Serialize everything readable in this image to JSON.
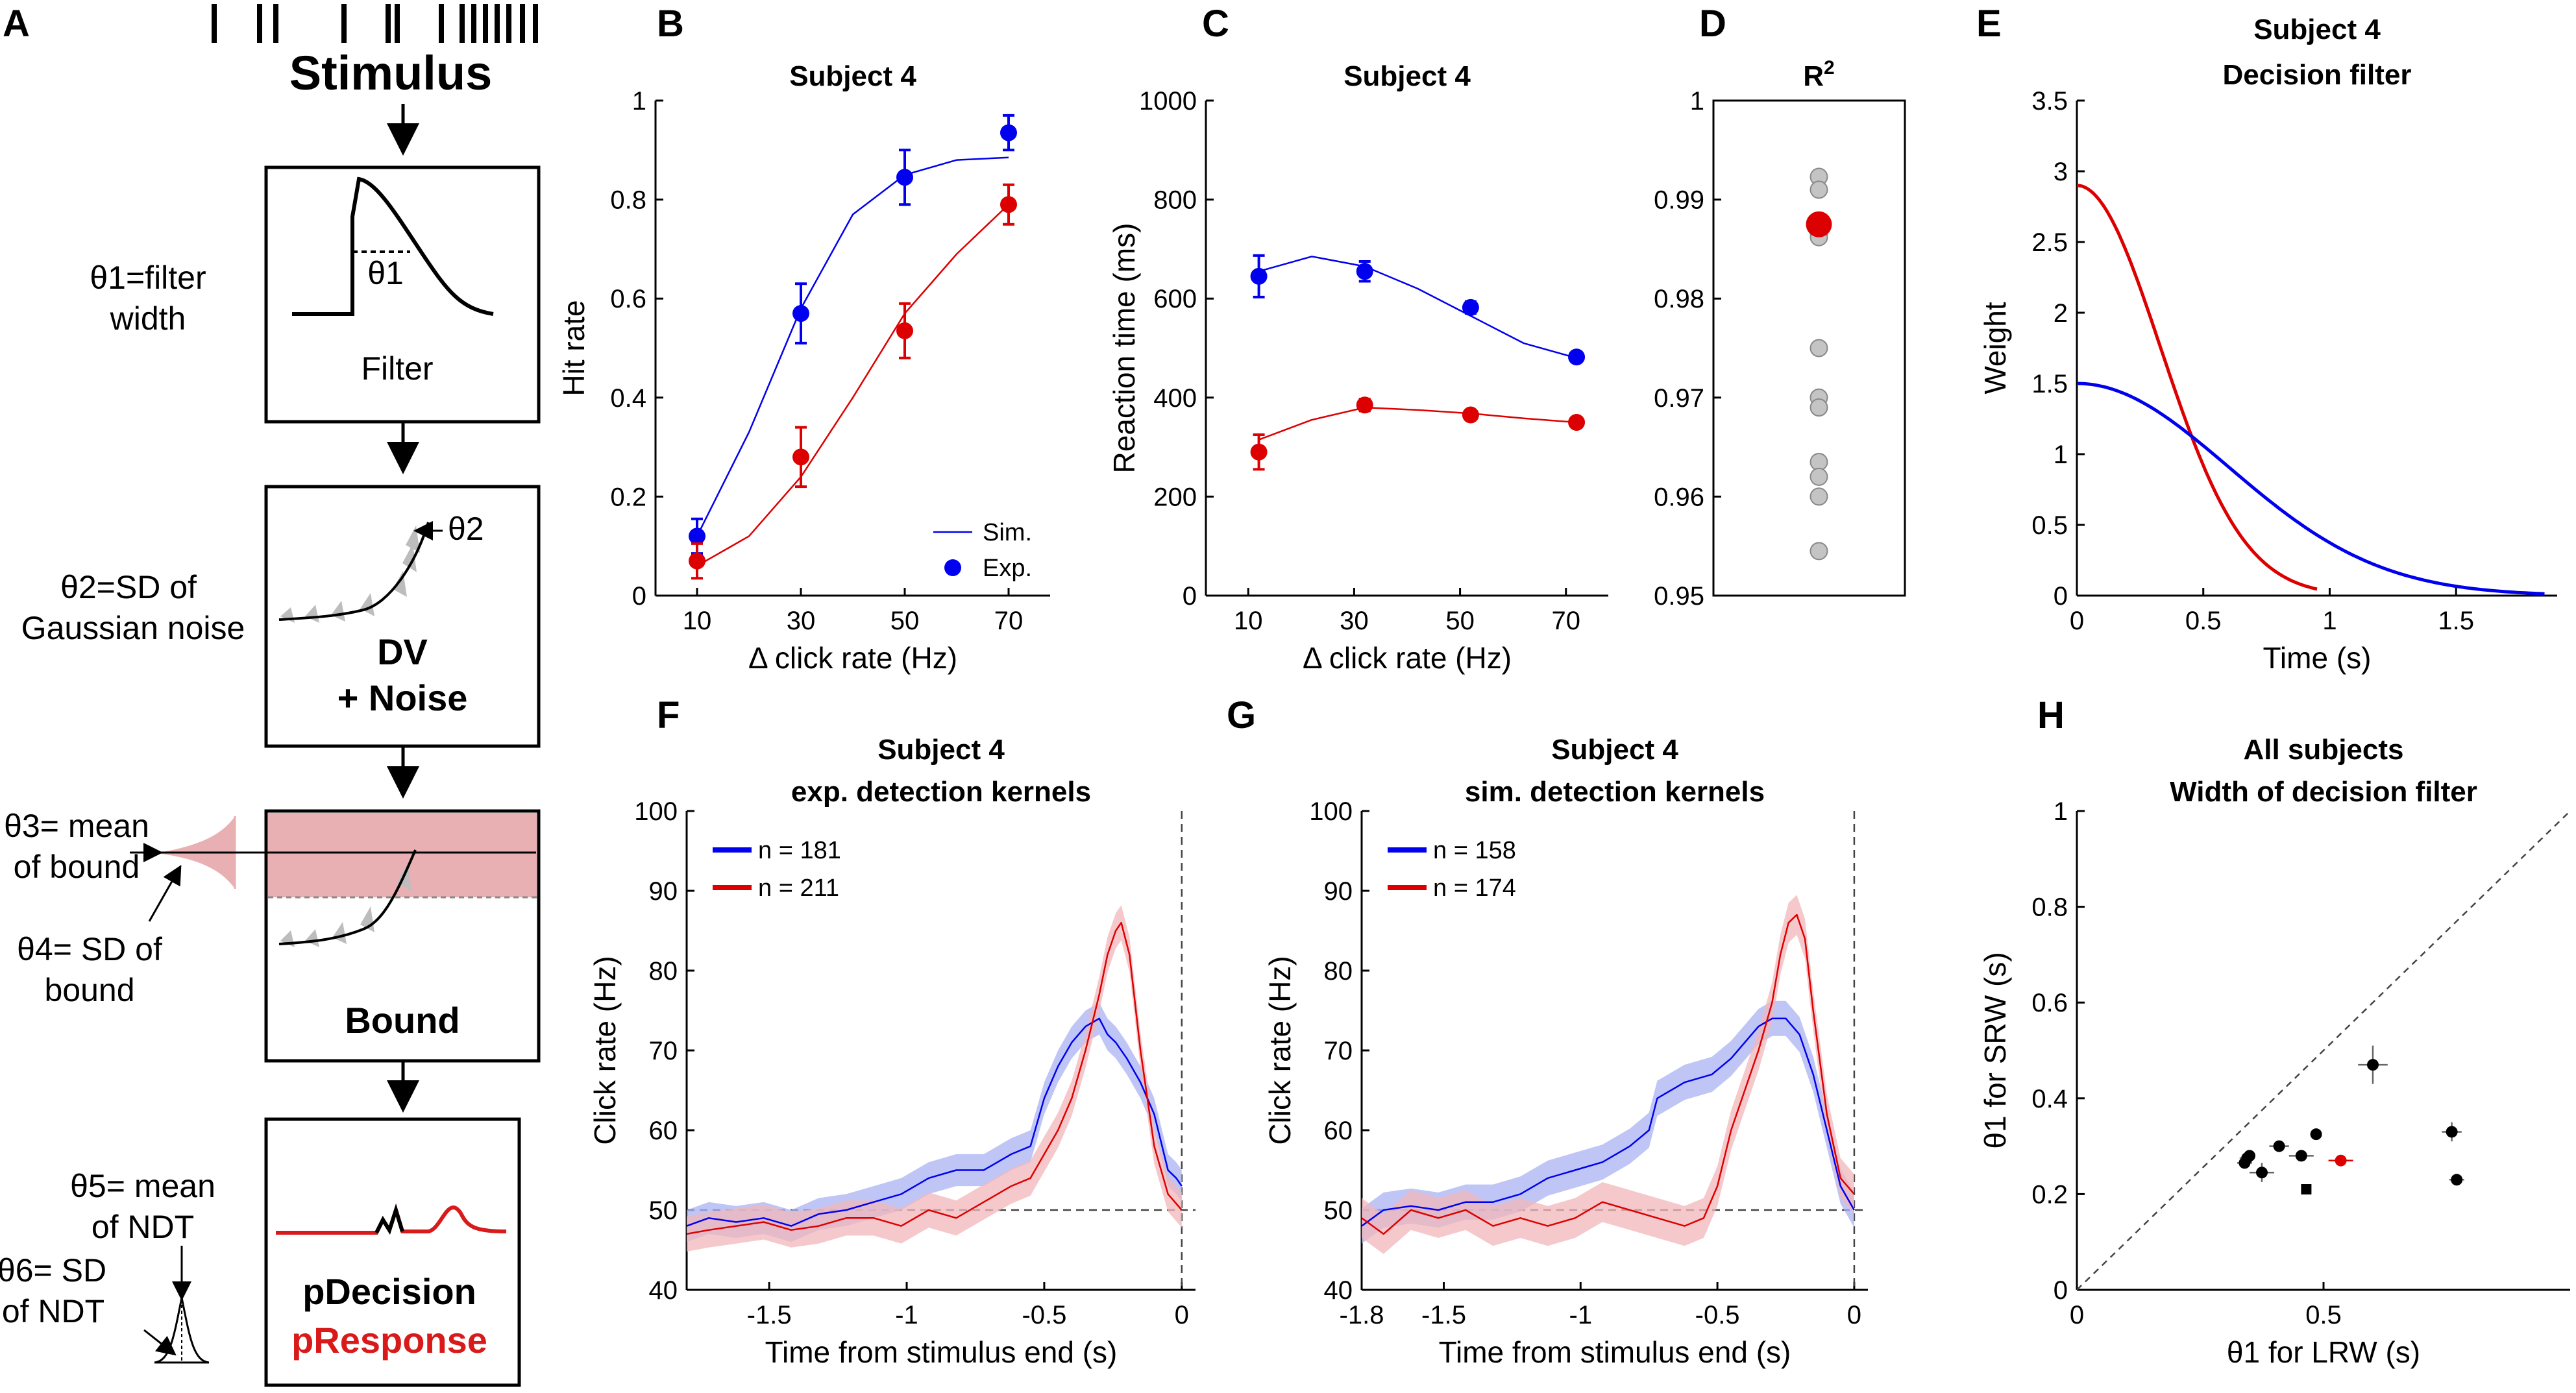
{
  "colors": {
    "blue": "#0000ee",
    "red": "#dd0000",
    "ci_blue": "#a9b3f2",
    "ci_red": "#f1b7bb",
    "bound_fill": "#e8b0b3",
    "gray": "#c4c4c4",
    "ndt_red": "#d81a1a"
  },
  "panels": [
    "A",
    "B",
    "C",
    "D",
    "E",
    "F",
    "G",
    "H"
  ],
  "schematic": {
    "stimulus_label": "Stimulus",
    "filter_label": "Filter",
    "filter_theta": "θ1",
    "dv_label_line1": "DV",
    "dv_label_line2": "+ Noise",
    "dv_theta": "θ2",
    "bound_label": "Bound",
    "pdecision_label": "pDecision",
    "presponse_label": "pResponse",
    "theta1_line1": "θ1=filter",
    "theta1_line2": "width",
    "theta2_line1": "θ2=SD of",
    "theta2_line2": "Gaussian noise",
    "theta3_line1": "θ3= mean",
    "theta3_line2": "of bound",
    "theta4_line1": "θ4= SD of",
    "theta4_line2": "bound",
    "theta5_line1": "θ5= mean",
    "theta5_line2": "of NDT",
    "theta6_line1": "θ6= SD",
    "theta6_line2": "of NDT"
  },
  "chart_data": [
    {
      "panel": "B",
      "type": "line",
      "title": "Subject 4",
      "xlabel": "Δ click rate (Hz)",
      "ylabel": "Hit rate",
      "xlim": [
        2,
        78
      ],
      "ylim": [
        0,
        1
      ],
      "xticks": [
        10,
        30,
        50,
        70
      ],
      "yticks": [
        0,
        0.2,
        0.4,
        0.6,
        0.8,
        1
      ],
      "ytick_labels": [
        "0",
        "0.2",
        "0.4",
        "0.6",
        "0.8",
        "1"
      ],
      "legend": [
        "Sim.",
        "Exp."
      ],
      "series": [
        {
          "name": "blue sim.",
          "kind": "line",
          "color": "blue",
          "x": [
            10,
            20,
            30,
            40,
            50,
            60,
            70
          ],
          "y": [
            0.12,
            0.33,
            0.58,
            0.77,
            0.85,
            0.88,
            0.885
          ]
        },
        {
          "name": "red sim.",
          "kind": "line",
          "color": "red",
          "x": [
            10,
            20,
            30,
            40,
            50,
            60,
            70
          ],
          "y": [
            0.06,
            0.12,
            0.24,
            0.4,
            0.57,
            0.69,
            0.79
          ]
        },
        {
          "name": "blue exp.",
          "kind": "points",
          "color": "blue",
          "x": [
            10,
            30,
            50,
            70
          ],
          "y": [
            0.12,
            0.57,
            0.845,
            0.935
          ],
          "err": [
            0.035,
            0.06,
            0.055,
            0.035
          ]
        },
        {
          "name": "red exp.",
          "kind": "points",
          "color": "red",
          "x": [
            10,
            30,
            50,
            70
          ],
          "y": [
            0.07,
            0.28,
            0.535,
            0.79
          ],
          "err": [
            0.035,
            0.06,
            0.055,
            0.04
          ]
        }
      ]
    },
    {
      "panel": "C",
      "type": "line",
      "title": "Subject 4",
      "xlabel": "Δ click rate (Hz)",
      "ylabel": "Reaction time (ms)",
      "xlim": [
        2,
        78
      ],
      "ylim": [
        0,
        1000
      ],
      "xticks": [
        10,
        30,
        50,
        70
      ],
      "yticks": [
        0,
        200,
        400,
        600,
        800,
        1000
      ],
      "ytick_labels": [
        "0",
        "200",
        "400",
        "600",
        "800",
        "1000"
      ],
      "series": [
        {
          "name": "blue sim.",
          "kind": "line",
          "color": "blue",
          "x": [
            12,
            22,
            32,
            42,
            52,
            62,
            72
          ],
          "y": [
            655,
            685,
            665,
            620,
            565,
            510,
            480
          ]
        },
        {
          "name": "red sim.",
          "kind": "line",
          "color": "red",
          "x": [
            12,
            22,
            32,
            42,
            52,
            62,
            72
          ],
          "y": [
            315,
            355,
            380,
            375,
            368,
            358,
            350
          ]
        },
        {
          "name": "blue exp.",
          "kind": "points",
          "color": "blue",
          "x": [
            12,
            32,
            52,
            72
          ],
          "y": [
            645,
            655,
            582,
            482
          ],
          "err": [
            42,
            20,
            12,
            10
          ]
        },
        {
          "name": "red exp.",
          "kind": "points",
          "color": "red",
          "x": [
            12,
            32,
            52,
            72
          ],
          "y": [
            290,
            385,
            365,
            350
          ],
          "err": [
            35,
            12,
            8,
            8
          ]
        }
      ]
    },
    {
      "panel": "D",
      "type": "scatter",
      "title": "R",
      "title_sup": "2",
      "ylim": [
        0.95,
        1
      ],
      "yticks": [
        0.95,
        0.96,
        0.97,
        0.98,
        0.99,
        1
      ],
      "ytick_labels": [
        "0.95",
        "0.96",
        "0.97",
        "0.98",
        "0.99",
        "1"
      ],
      "gray_values": [
        0.9923,
        0.991,
        0.9865,
        0.9862,
        0.975,
        0.97,
        0.969,
        0.9635,
        0.962,
        0.96,
        0.9545
      ],
      "highlight_value": 0.9875
    },
    {
      "panel": "E",
      "type": "line",
      "title": "Subject 4",
      "title_line2": "Decision filter",
      "xlabel": "Time (s)",
      "ylabel": "Weight",
      "xlim": [
        0,
        1.9
      ],
      "ylim": [
        0,
        3.5
      ],
      "xticks": [
        0,
        0.5,
        1,
        1.5
      ],
      "xtick_labels": [
        "0",
        "0.5",
        "1",
        "1.5"
      ],
      "yticks": [
        0,
        0.5,
        1,
        1.5,
        2,
        2.5,
        3,
        3.5
      ],
      "ytick_labels": [
        "0",
        "0.5",
        "1",
        "1.5",
        "2",
        "2.5",
        "3",
        "3.5"
      ],
      "series": [
        {
          "name": "red filter",
          "color": "red",
          "amplitude": 2.9,
          "sd": 0.33,
          "x_end": 0.95
        },
        {
          "name": "blue filter",
          "color": "blue",
          "amplitude": 1.5,
          "sd": 0.6,
          "x_end": 1.85
        }
      ]
    },
    {
      "panel": "F",
      "type": "line",
      "title": "Subject 4",
      "title_line2": "exp. detection kernels",
      "xlabel": "Time from stimulus end (s)",
      "ylabel": "Click rate (Hz)",
      "xlim": [
        -1.8,
        0.05
      ],
      "ylim": [
        40,
        100
      ],
      "xticks": [
        -1.5,
        -1,
        -0.5,
        0
      ],
      "xtick_labels": [
        "-1.5",
        "-1",
        "-0.5",
        "0"
      ],
      "yticks": [
        40,
        50,
        60,
        70,
        80,
        90,
        100
      ],
      "ytick_labels": [
        "40",
        "50",
        "60",
        "70",
        "80",
        "90",
        "100"
      ],
      "hline": 50,
      "vline": 0,
      "legend": [
        "n = 181",
        "n = 211"
      ],
      "series": [
        {
          "name": "n = 181",
          "color": "blue",
          "ci": 2.0,
          "x": [
            -1.8,
            -1.72,
            -1.62,
            -1.52,
            -1.42,
            -1.32,
            -1.22,
            -1.12,
            -1.02,
            -0.92,
            -0.82,
            -0.72,
            -0.62,
            -0.55,
            -0.5,
            -0.45,
            -0.4,
            -0.35,
            -0.3,
            -0.27,
            -0.24,
            -0.2,
            -0.15,
            -0.1,
            -0.05,
            -0.02,
            0
          ],
          "y": [
            48,
            49,
            48.5,
            49,
            48,
            49.5,
            50,
            51,
            52,
            54,
            55,
            55,
            57,
            58,
            64,
            68,
            71,
            73,
            74,
            72,
            71,
            69,
            66,
            62,
            55,
            54,
            53
          ]
        },
        {
          "name": "n = 211",
          "color": "red",
          "ci": 2.2,
          "x": [
            -1.8,
            -1.72,
            -1.62,
            -1.52,
            -1.42,
            -1.32,
            -1.22,
            -1.12,
            -1.02,
            -0.92,
            -0.82,
            -0.72,
            -0.62,
            -0.55,
            -0.5,
            -0.45,
            -0.4,
            -0.35,
            -0.3,
            -0.27,
            -0.24,
            -0.22,
            -0.19,
            -0.15,
            -0.1,
            -0.05,
            0
          ],
          "y": [
            47,
            47.5,
            48,
            48.5,
            47.5,
            48,
            49,
            49,
            48,
            50,
            49,
            51,
            53,
            54,
            57,
            60,
            64,
            70,
            77,
            82,
            85,
            86,
            82,
            70,
            58,
            52,
            50
          ]
        }
      ]
    },
    {
      "panel": "G",
      "type": "line",
      "title": "Subject 4",
      "title_line2": "sim. detection kernels",
      "xlabel": "Time from stimulus end (s)",
      "ylabel": "Click rate (Hz)",
      "xlim": [
        -1.8,
        0.05
      ],
      "ylim": [
        40,
        100
      ],
      "xticks": [
        -1.8,
        -1.5,
        -1,
        -0.5,
        0
      ],
      "xtick_labels": [
        "-1.8",
        "-1.5",
        "-1",
        "-0.5",
        "0"
      ],
      "yticks": [
        40,
        50,
        60,
        70,
        80,
        90,
        100
      ],
      "ytick_labels": [
        "40",
        "50",
        "60",
        "70",
        "80",
        "90",
        "100"
      ],
      "hline": 50,
      "vline": 0,
      "legend": [
        "n = 158",
        "n = 174"
      ],
      "series": [
        {
          "name": "n = 158",
          "color": "blue",
          "ci": 2.2,
          "x": [
            -1.8,
            -1.72,
            -1.62,
            -1.52,
            -1.42,
            -1.32,
            -1.22,
            -1.12,
            -1.02,
            -0.92,
            -0.82,
            -0.75,
            -0.72,
            -0.62,
            -0.52,
            -0.45,
            -0.4,
            -0.35,
            -0.3,
            -0.25,
            -0.2,
            -0.15,
            -0.1,
            -0.05,
            0
          ],
          "y": [
            48,
            50,
            50.5,
            50,
            51,
            51,
            52,
            54,
            55,
            56,
            58,
            60,
            64,
            66,
            67,
            69,
            71,
            73,
            74,
            74,
            72,
            67,
            60,
            53,
            50
          ]
        },
        {
          "name": "n = 174",
          "color": "red",
          "ci": 2.5,
          "x": [
            -1.8,
            -1.72,
            -1.62,
            -1.52,
            -1.42,
            -1.32,
            -1.22,
            -1.12,
            -1.02,
            -0.92,
            -0.82,
            -0.72,
            -0.62,
            -0.55,
            -0.5,
            -0.45,
            -0.4,
            -0.35,
            -0.3,
            -0.27,
            -0.24,
            -0.21,
            -0.18,
            -0.15,
            -0.1,
            -0.05,
            0
          ],
          "y": [
            49,
            47,
            50,
            49,
            50,
            48,
            49,
            48,
            49,
            51,
            50,
            49,
            48,
            49,
            53,
            60,
            65,
            70,
            76,
            82,
            86,
            87,
            84,
            75,
            62,
            54,
            52
          ]
        }
      ]
    },
    {
      "panel": "H",
      "type": "scatter",
      "title": "All subjects",
      "title_line2": "Width of decision filter",
      "xlabel": "θ1 for LRW (s)",
      "ylabel": "θ1 for SRW (s)",
      "xlim": [
        0,
        1
      ],
      "ylim": [
        0,
        1
      ],
      "xticks": [
        0,
        0.5
      ],
      "xtick_labels": [
        "0",
        "0.5"
      ],
      "yticks": [
        0,
        0.2,
        0.4,
        0.6,
        0.8,
        1
      ],
      "ytick_labels": [
        "0",
        "0.2",
        "0.4",
        "0.6",
        "0.8",
        "1"
      ],
      "diagonal": true,
      "points": [
        {
          "x": 0.34,
          "y": 0.265,
          "xe": 0.015,
          "ye": 0.01,
          "color": "black"
        },
        {
          "x": 0.345,
          "y": 0.275,
          "xe": 0.015,
          "ye": 0.01,
          "color": "black"
        },
        {
          "x": 0.35,
          "y": 0.28,
          "xe": 0.01,
          "ye": 0.01,
          "color": "black"
        },
        {
          "x": 0.375,
          "y": 0.245,
          "xe": 0.025,
          "ye": 0.02,
          "color": "black"
        },
        {
          "x": 0.41,
          "y": 0.3,
          "xe": 0.02,
          "ye": 0.01,
          "color": "black"
        },
        {
          "x": 0.455,
          "y": 0.28,
          "xe": 0.025,
          "ye": 0.01,
          "color": "black"
        },
        {
          "x": 0.465,
          "y": 0.21,
          "xe": 0.0,
          "ye": 0.0,
          "color": "black"
        },
        {
          "x": 0.485,
          "y": 0.325,
          "xe": 0.0,
          "ye": 0.0,
          "color": "black"
        },
        {
          "x": 0.535,
          "y": 0.27,
          "xe": 0.025,
          "ye": 0.01,
          "color": "red"
        },
        {
          "x": 0.6,
          "y": 0.47,
          "xe": 0.03,
          "ye": 0.04,
          "color": "black"
        },
        {
          "x": 0.76,
          "y": 0.33,
          "xe": 0.02,
          "ye": 0.02,
          "color": "black"
        },
        {
          "x": 0.77,
          "y": 0.23,
          "xe": 0.015,
          "ye": 0.01,
          "color": "black"
        }
      ]
    }
  ]
}
